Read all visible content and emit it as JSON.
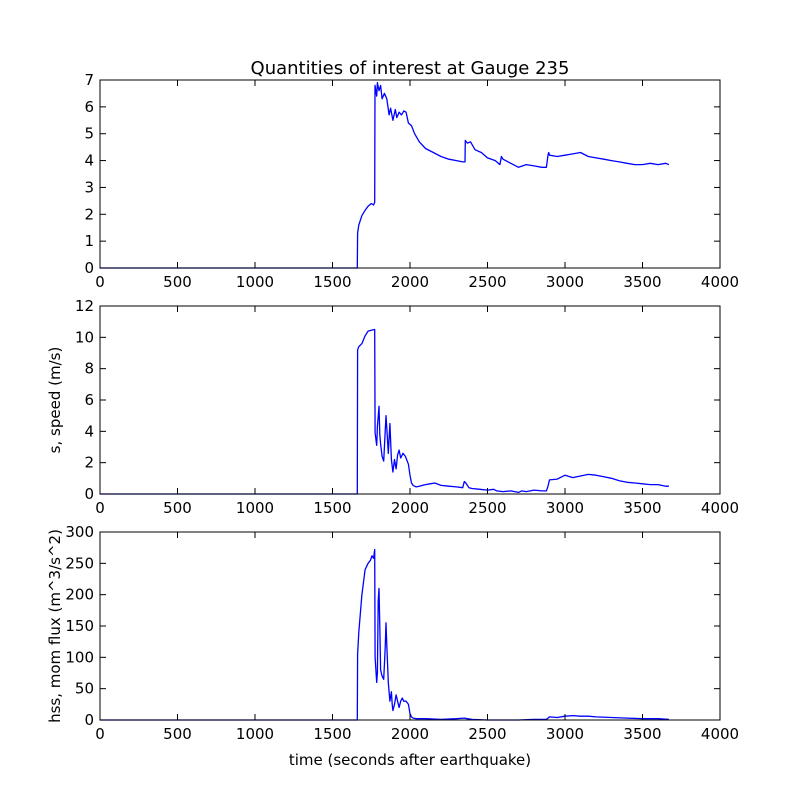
{
  "figure": {
    "title": "Quantities of interest at Gauge 235",
    "xlabel": "time (seconds after earthquake)"
  },
  "colors": {
    "line": "#0000ff",
    "axes": "#000000",
    "background": "#ffffff"
  },
  "chart_data": [
    {
      "type": "line",
      "title": "Quantities of interest at Gauge 235",
      "xlabel": "",
      "ylabel": "",
      "xlim": [
        0,
        4000
      ],
      "ylim": [
        0,
        7
      ],
      "xticks": [
        0,
        500,
        1000,
        1500,
        2000,
        2500,
        3000,
        3500,
        4000
      ],
      "yticks": [
        0,
        1,
        2,
        3,
        4,
        5,
        6,
        7
      ],
      "grid": false,
      "series": [
        {
          "x": [
            0,
            1660,
            1662,
            1670,
            1690,
            1710,
            1730,
            1750,
            1765,
            1772,
            1774,
            1785,
            1790,
            1800,
            1810,
            1820,
            1835,
            1850,
            1865,
            1875,
            1890,
            1905,
            1915,
            1930,
            1945,
            1960,
            1975,
            1990,
            2010,
            2030,
            2060,
            2100,
            2150,
            2200,
            2250,
            2300,
            2340,
            2355,
            2357,
            2370,
            2390,
            2420,
            2460,
            2500,
            2550,
            2580,
            2590,
            2600,
            2650,
            2700,
            2750,
            2800,
            2850,
            2880,
            2890,
            2895,
            2900,
            2950,
            3000,
            3050,
            3100,
            3150,
            3200,
            3250,
            3300,
            3350,
            3400,
            3450,
            3500,
            3550,
            3600,
            3650,
            3670
          ],
          "y": [
            0,
            0,
            1.3,
            1.6,
            1.95,
            2.15,
            2.3,
            2.4,
            2.35,
            2.45,
            6.8,
            6.4,
            6.9,
            6.6,
            6.8,
            6.3,
            6.5,
            6.3,
            5.7,
            5.95,
            5.5,
            5.9,
            5.6,
            5.8,
            5.7,
            5.85,
            5.8,
            5.4,
            5.3,
            5.0,
            4.7,
            4.45,
            4.3,
            4.15,
            4.05,
            4.0,
            3.95,
            3.95,
            4.75,
            4.65,
            4.7,
            4.4,
            4.3,
            4.1,
            4.0,
            3.85,
            4.15,
            4.05,
            3.9,
            3.75,
            3.85,
            3.8,
            3.75,
            3.75,
            4.2,
            4.3,
            4.2,
            4.15,
            4.2,
            4.25,
            4.3,
            4.15,
            4.1,
            4.05,
            4.0,
            3.95,
            3.9,
            3.85,
            3.85,
            3.9,
            3.85,
            3.9,
            3.85
          ]
        }
      ]
    },
    {
      "type": "line",
      "xlabel": "",
      "ylabel": "s, speed (m/s)",
      "xlim": [
        0,
        4000
      ],
      "ylim": [
        0,
        12
      ],
      "xticks": [
        0,
        500,
        1000,
        1500,
        2000,
        2500,
        3000,
        3500,
        4000
      ],
      "yticks": [
        0,
        2,
        4,
        6,
        8,
        10,
        12
      ],
      "grid": false,
      "series": [
        {
          "x": [
            0,
            1660,
            1662,
            1670,
            1690,
            1710,
            1730,
            1750,
            1770,
            1772,
            1775,
            1785,
            1790,
            1800,
            1805,
            1810,
            1820,
            1830,
            1840,
            1845,
            1850,
            1860,
            1870,
            1880,
            1890,
            1900,
            1910,
            1920,
            1930,
            1940,
            1955,
            1970,
            1990,
            2000,
            2010,
            2020,
            2040,
            2060,
            2080,
            2100,
            2130,
            2160,
            2200,
            2250,
            2300,
            2340,
            2350,
            2360,
            2380,
            2400,
            2450,
            2500,
            2540,
            2560,
            2600,
            2650,
            2700,
            2720,
            2750,
            2800,
            2850,
            2880,
            2890,
            2900,
            2950,
            3000,
            3050,
            3100,
            3150,
            3200,
            3250,
            3300,
            3350,
            3400,
            3450,
            3500,
            3550,
            3600,
            3650,
            3670
          ],
          "y": [
            0,
            0,
            9.2,
            9.4,
            9.6,
            10.1,
            10.4,
            10.45,
            10.5,
            10.5,
            3.9,
            3.1,
            4.3,
            5.6,
            3.8,
            3.2,
            2.4,
            2.1,
            4.0,
            5.0,
            4.2,
            2.6,
            4.5,
            2.2,
            1.4,
            2.2,
            1.6,
            2.5,
            2.8,
            2.3,
            2.6,
            2.4,
            1.9,
            1.2,
            0.7,
            0.55,
            0.45,
            0.5,
            0.55,
            0.6,
            0.65,
            0.7,
            0.55,
            0.5,
            0.45,
            0.4,
            0.8,
            0.7,
            0.4,
            0.35,
            0.3,
            0.25,
            0.3,
            0.2,
            0.15,
            0.2,
            0.1,
            0.2,
            0.15,
            0.25,
            0.2,
            0.2,
            0.5,
            0.9,
            0.95,
            1.2,
            1.05,
            1.15,
            1.25,
            1.2,
            1.1,
            1.0,
            0.85,
            0.75,
            0.7,
            0.65,
            0.6,
            0.6,
            0.5,
            0.5
          ]
        }
      ]
    },
    {
      "type": "line",
      "xlabel": "time (seconds after earthquake)",
      "ylabel": "hss, mom flux (m^3/s^2)",
      "xlim": [
        0,
        4000
      ],
      "ylim": [
        0,
        300
      ],
      "xticks": [
        0,
        500,
        1000,
        1500,
        2000,
        2500,
        3000,
        3500,
        4000
      ],
      "yticks": [
        0,
        50,
        100,
        150,
        200,
        250,
        300
      ],
      "grid": false,
      "series": [
        {
          "x": [
            0,
            1660,
            1662,
            1670,
            1690,
            1710,
            1730,
            1745,
            1755,
            1765,
            1772,
            1775,
            1780,
            1785,
            1790,
            1795,
            1800,
            1805,
            1810,
            1820,
            1830,
            1840,
            1845,
            1850,
            1860,
            1870,
            1880,
            1885,
            1890,
            1900,
            1910,
            1920,
            1930,
            1940,
            1950,
            1960,
            1975,
            1990,
            2000,
            2010,
            2020,
            2040,
            2060,
            2100,
            2200,
            2300,
            2350,
            2370,
            2400,
            2500,
            2600,
            2700,
            2800,
            2880,
            2890,
            2900,
            2950,
            3000,
            3050,
            3100,
            3150,
            3200,
            3300,
            3400,
            3500,
            3600,
            3670
          ],
          "y": [
            0,
            0,
            105,
            140,
            200,
            240,
            250,
            255,
            262,
            258,
            272,
            100,
            80,
            60,
            75,
            190,
            210,
            150,
            80,
            70,
            65,
            115,
            155,
            120,
            60,
            30,
            45,
            25,
            15,
            25,
            40,
            30,
            20,
            30,
            35,
            30,
            30,
            25,
            10,
            5,
            3,
            2,
            2,
            2,
            1,
            2,
            3,
            2,
            1,
            0,
            0,
            0,
            1,
            1,
            3,
            5,
            4,
            6,
            7,
            6,
            6,
            5,
            4,
            3,
            2,
            2,
            1
          ]
        }
      ]
    }
  ]
}
